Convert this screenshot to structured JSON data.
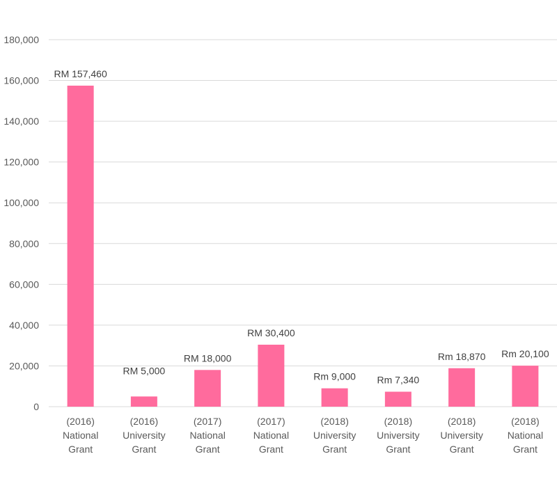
{
  "chart_data": {
    "type": "bar",
    "categories": [
      [
        "(2016)",
        "National",
        "Grant"
      ],
      [
        "(2016)",
        "University",
        "Grant"
      ],
      [
        "(2017)",
        "National",
        "Grant"
      ],
      [
        "(2017)",
        "National",
        "Grant"
      ],
      [
        "(2018)",
        "University",
        "Grant"
      ],
      [
        "(2018)",
        "University",
        "Grant"
      ],
      [
        "(2018)",
        "University",
        "Grant"
      ],
      [
        "(2018)",
        "National",
        "Grant"
      ]
    ],
    "values": [
      157460,
      5000,
      18000,
      30400,
      9000,
      7340,
      18870,
      20100
    ],
    "data_labels": [
      "RM 157,460",
      "RM 5,000",
      "RM 18,000",
      "RM 30,400",
      "Rm 9,000",
      "Rm 7,340",
      "Rm 18,870",
      "Rm 20,100"
    ],
    "ylim": [
      0,
      180000
    ],
    "y_ticks": [
      "0",
      "20,000",
      "40,000",
      "60,000",
      "80,000",
      "100,000",
      "120,000",
      "140,000",
      "160,000",
      "180,000"
    ],
    "grid": true,
    "bar_color": "#FF6B9D",
    "gridline_color": "#D9D9D9"
  }
}
